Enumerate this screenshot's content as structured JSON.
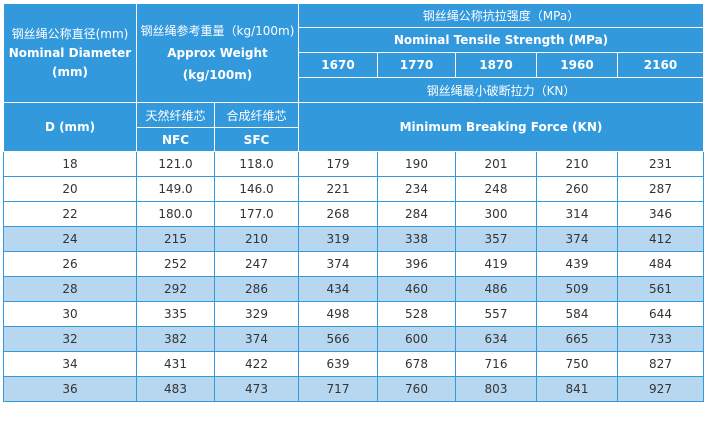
{
  "headers": {
    "diameter_cn": "钢丝绳公称直径(mm)",
    "diameter_en": "Nominal Diameter",
    "diameter_unit": "(mm)",
    "weight_cn": "钢丝绳参考重量（kg/100m)",
    "weight_en": "Approx Weight (kg/100m)",
    "strength_cn": "钢丝绳公称抗拉强度（MPa）",
    "strength_en": "Nominal Tensile Strength (MPa)",
    "grades": [
      "1670",
      "1770",
      "1870",
      "1960",
      "2160"
    ],
    "break_cn": "钢丝绳最小破断拉力（KN）",
    "d_label": "D (mm)",
    "nfc_cn": "天然纤维芯",
    "sfc_cn": "合成纤维芯",
    "nfc": "NFC",
    "sfc": "SFC",
    "break_en": "Minimum Breaking Force (KN)"
  },
  "rows": [
    [
      "18",
      "121.0",
      "118.0",
      "179",
      "190",
      "201",
      "210",
      "231"
    ],
    [
      "20",
      "149.0",
      "146.0",
      "221",
      "234",
      "248",
      "260",
      "287"
    ],
    [
      "22",
      "180.0",
      "177.0",
      "268",
      "284",
      "300",
      "314",
      "346"
    ],
    [
      "24",
      "215",
      "210",
      "319",
      "338",
      "357",
      "374",
      "412"
    ],
    [
      "26",
      "252",
      "247",
      "374",
      "396",
      "419",
      "439",
      "484"
    ],
    [
      "28",
      "292",
      "286",
      "434",
      "460",
      "486",
      "509",
      "561"
    ],
    [
      "30",
      "335",
      "329",
      "498",
      "528",
      "557",
      "584",
      "644"
    ],
    [
      "32",
      "382",
      "374",
      "566",
      "600",
      "634",
      "665",
      "733"
    ],
    [
      "34",
      "431",
      "422",
      "639",
      "678",
      "716",
      "750",
      "827"
    ],
    [
      "36",
      "483",
      "473",
      "717",
      "760",
      "803",
      "841",
      "927"
    ]
  ],
  "colors": {
    "header": "#3399dd",
    "stripe": "#b7d7f0"
  }
}
